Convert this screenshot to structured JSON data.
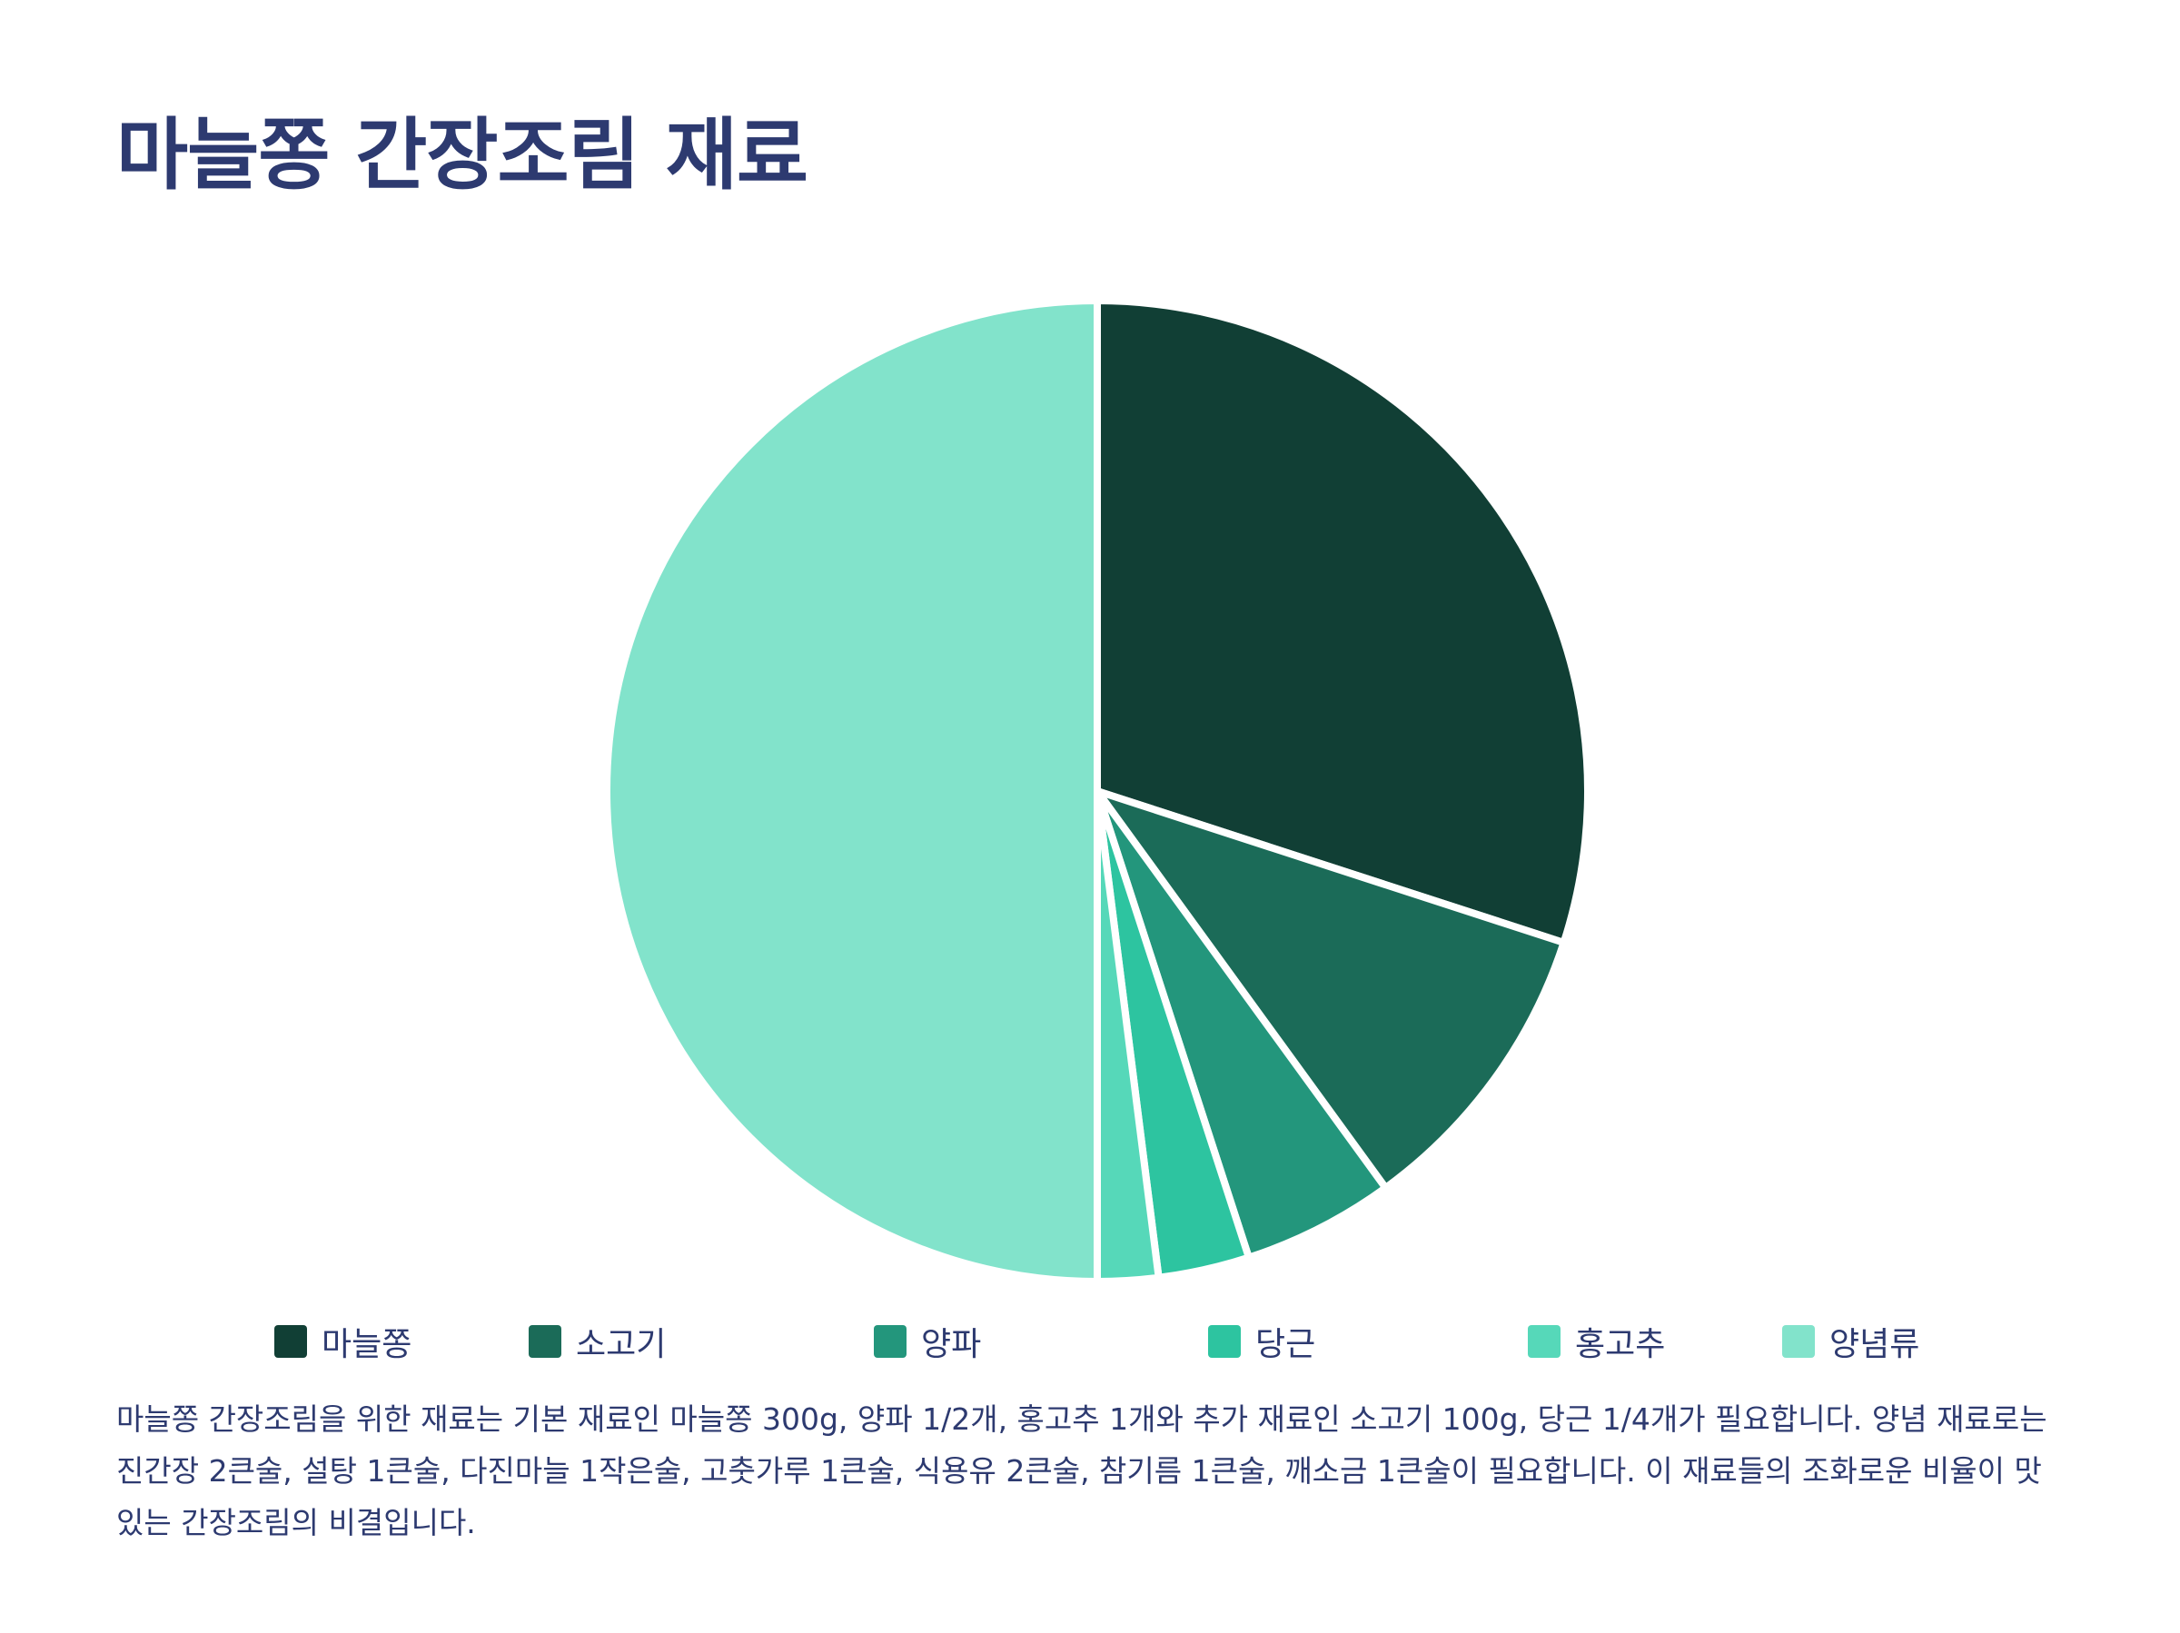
{
  "title": "마늘쫑 간장조림 재료",
  "chart_data": {
    "type": "pie",
    "title": "마늘쫑 간장조림 재료",
    "categories": [
      "마늘쫑",
      "소고기",
      "양파",
      "당근",
      "홍고추",
      "양념류"
    ],
    "values": [
      30,
      10,
      5,
      3,
      2,
      50
    ],
    "colors": [
      "#113f35",
      "#1b6b58",
      "#23967c",
      "#2dc4a0",
      "#56d8b9",
      "#82e3cb"
    ],
    "legend_position": "bottom",
    "start_angle": "12 o'clock, clockwise"
  },
  "legend": [
    {
      "label": "마늘쫑",
      "color": "#113f35"
    },
    {
      "label": "소고기",
      "color": "#1b6b58"
    },
    {
      "label": "양파",
      "color": "#23967c"
    },
    {
      "label": "당근",
      "color": "#2dc4a0"
    },
    {
      "label": "홍고추",
      "color": "#56d8b9"
    },
    {
      "label": "양념류",
      "color": "#82e3cb"
    }
  ],
  "description": "마늘쫑 간장조림을 위한 재료는 기본 재료인 마늘쫑 300g, 양파 1/2개, 홍고추 1개와 추가 재료인 소고기 100g, 당근 1/4개가 필요합니다. 양념 재료로는 진간장 2큰술, 설탕 1큰술, 다진마늘 1작은술, 고춧가루 1큰술, 식용유 2큰술, 참기름 1큰술, 깨소금 1큰술이 필요합니다. 이 재료들의 조화로운 비율이 맛있는 간장조림의 비결입니다."
}
